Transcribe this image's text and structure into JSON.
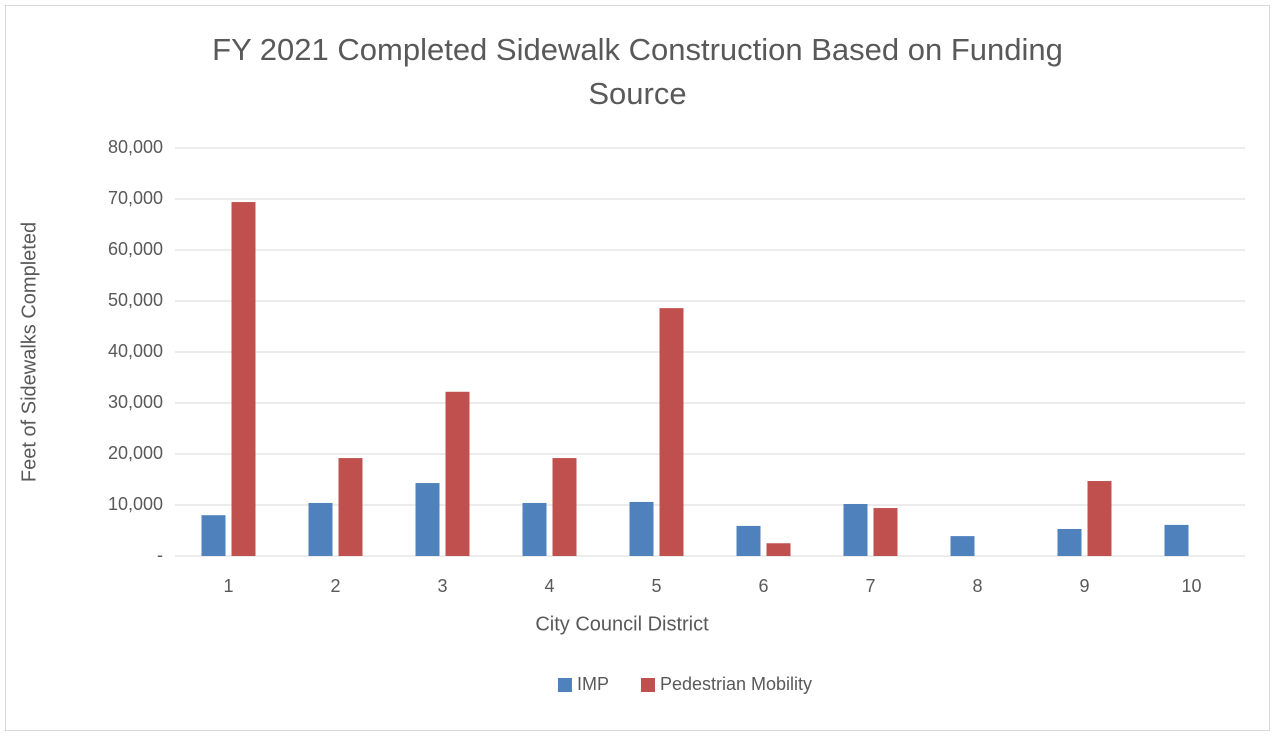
{
  "chart_data": {
    "type": "bar",
    "title": "FY 2021 Completed Sidewalk Construction Based on Funding Source",
    "x_label": "City Council District",
    "y_label": "Feet of Sidewalks Completed",
    "categories": [
      "1",
      "2",
      "3",
      "4",
      "5",
      "6",
      "7",
      "8",
      "9",
      "10"
    ],
    "series": [
      {
        "name": "IMP",
        "color": "#4f81bd",
        "values": [
          8000,
          10400,
          14300,
          10400,
          10600,
          5900,
          10200,
          3900,
          5300,
          6100
        ]
      },
      {
        "name": "Pedestrian Mobility",
        "color": "#c0504d",
        "values": [
          69400,
          19200,
          32200,
          19200,
          48600,
          2500,
          9400,
          0,
          14700,
          0
        ]
      }
    ],
    "ylim": [
      0,
      80000
    ],
    "yticks": [
      {
        "value": 0,
        "label": "-"
      },
      {
        "value": 10000,
        "label": "10,000"
      },
      {
        "value": 20000,
        "label": "20,000"
      },
      {
        "value": 30000,
        "label": "30,000"
      },
      {
        "value": 40000,
        "label": "40,000"
      },
      {
        "value": 50000,
        "label": "50,000"
      },
      {
        "value": 60000,
        "label": "60,000"
      },
      {
        "value": 70000,
        "label": "70,000"
      },
      {
        "value": 80000,
        "label": "80,000"
      }
    ],
    "grid": true,
    "legend": "bottom"
  }
}
